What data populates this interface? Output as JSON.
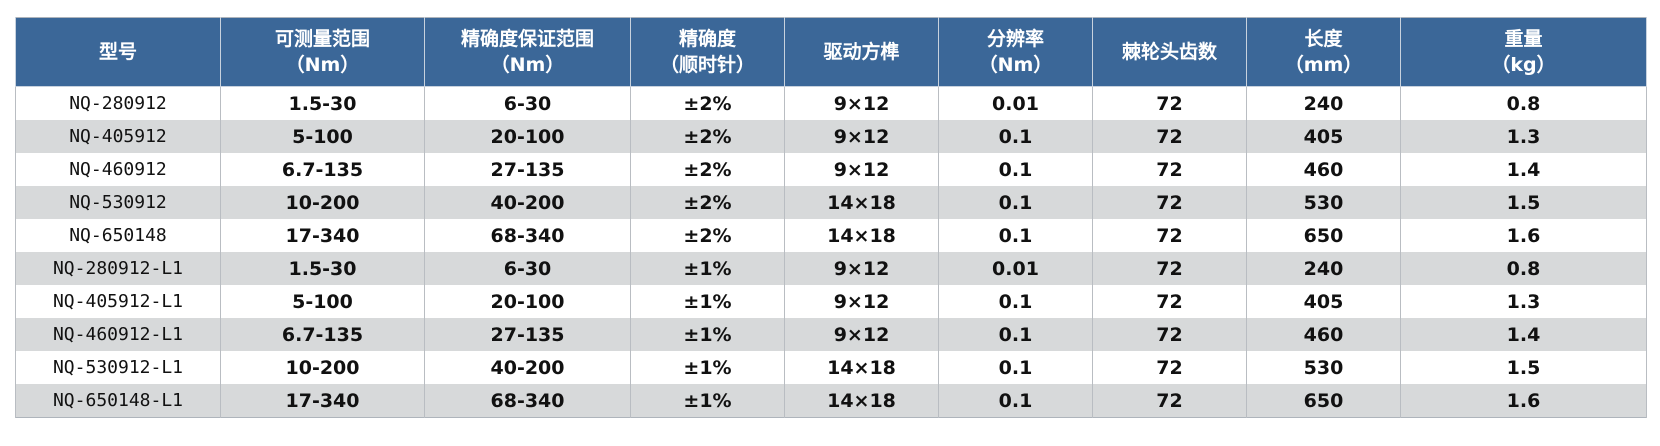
{
  "table": {
    "columns": [
      {
        "line1": "型号",
        "line2": ""
      },
      {
        "line1": "可测量范围",
        "line2": "（Nm）"
      },
      {
        "line1": "精确度保证范围",
        "line2": "（Nm）"
      },
      {
        "line1": "精确度",
        "line2": "（顺时针）"
      },
      {
        "line1": "驱动方榫",
        "line2": ""
      },
      {
        "line1": "分辨率",
        "line2": "（Nm）"
      },
      {
        "line1": "棘轮头齿数",
        "line2": ""
      },
      {
        "line1": "长度",
        "line2": "（mm）"
      },
      {
        "line1": "重量",
        "line2": "（kg）"
      }
    ],
    "rows": [
      [
        "NQ-280912",
        "1.5-30",
        "6-30",
        "±2%",
        "9×12",
        "0.01",
        "72",
        "240",
        "0.8"
      ],
      [
        "NQ-405912",
        "5-100",
        "20-100",
        "±2%",
        "9×12",
        "0.1",
        "72",
        "405",
        "1.3"
      ],
      [
        "NQ-460912",
        "6.7-135",
        "27-135",
        "±2%",
        "9×12",
        "0.1",
        "72",
        "460",
        "1.4"
      ],
      [
        "NQ-530912",
        "10-200",
        "40-200",
        "±2%",
        "14×18",
        "0.1",
        "72",
        "530",
        "1.5"
      ],
      [
        "NQ-650148",
        "17-340",
        "68-340",
        "±2%",
        "14×18",
        "0.1",
        "72",
        "650",
        "1.6"
      ],
      [
        "NQ-280912-L1",
        "1.5-30",
        "6-30",
        "±1%",
        "9×12",
        "0.01",
        "72",
        "240",
        "0.8"
      ],
      [
        "NQ-405912-L1",
        "5-100",
        "20-100",
        "±1%",
        "9×12",
        "0.1",
        "72",
        "405",
        "1.3"
      ],
      [
        "NQ-460912-L1",
        "6.7-135",
        "27-135",
        "±1%",
        "9×12",
        "0.1",
        "72",
        "460",
        "1.4"
      ],
      [
        "NQ-530912-L1",
        "10-200",
        "40-200",
        "±1%",
        "14×18",
        "0.1",
        "72",
        "530",
        "1.5"
      ],
      [
        "NQ-650148-L1",
        "17-340",
        "68-340",
        "±1%",
        "14×18",
        "0.1",
        "72",
        "650",
        "1.6"
      ]
    ]
  },
  "colors": {
    "header_bg": "#3b6798",
    "header_text": "#ffffff",
    "row_alt_bg": "#d7d9da",
    "row_bg": "#ffffff"
  }
}
